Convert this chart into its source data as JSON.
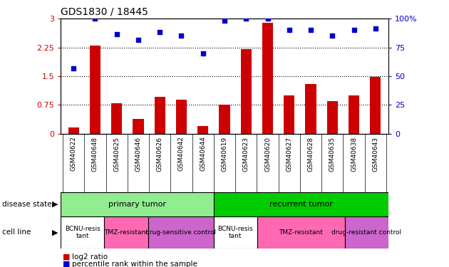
{
  "title": "GDS1830 / 18445",
  "samples": [
    "GSM40622",
    "GSM40648",
    "GSM40625",
    "GSM40646",
    "GSM40626",
    "GSM40642",
    "GSM40644",
    "GSM40619",
    "GSM40623",
    "GSM40620",
    "GSM40627",
    "GSM40628",
    "GSM40635",
    "GSM40638",
    "GSM40643"
  ],
  "log2_ratio": [
    0.15,
    2.3,
    0.8,
    0.38,
    0.95,
    0.88,
    0.2,
    0.75,
    2.2,
    2.9,
    1.0,
    1.3,
    0.85,
    1.0,
    1.47
  ],
  "pct_rank": [
    1.7,
    3.0,
    2.6,
    2.45,
    2.65,
    2.55,
    2.1,
    2.95,
    3.0,
    3.0,
    2.7,
    2.7,
    2.55,
    2.7,
    2.75
  ],
  "bar_color": "#cc0000",
  "dot_color": "#0000cc",
  "ylim_left": [
    0,
    3
  ],
  "ylim_right": [
    0,
    100
  ],
  "yticks_left": [
    0,
    0.75,
    1.5,
    2.25,
    3.0
  ],
  "yticks_right": [
    0,
    25,
    50,
    75,
    100
  ],
  "ytick_labels_left": [
    "0",
    "0.75",
    "1.5",
    "2.25",
    "3"
  ],
  "ytick_labels_right": [
    "0",
    "25",
    "50",
    "75",
    "100%"
  ],
  "disease_state_groups": [
    {
      "label": "primary tumor",
      "start": 0,
      "end": 7,
      "color": "#90ee90"
    },
    {
      "label": "recurrent tumor",
      "start": 7,
      "end": 15,
      "color": "#00cc00"
    }
  ],
  "cell_line_groups": [
    {
      "label": "BCNU-resis\ntant",
      "start": 0,
      "end": 2,
      "color": "#ffffff"
    },
    {
      "label": "TMZ-resistant",
      "start": 2,
      "end": 4,
      "color": "#ff69b4"
    },
    {
      "label": "drug-sensitive control",
      "start": 4,
      "end": 7,
      "color": "#cc66cc"
    },
    {
      "label": "BCNU-resis\ntant",
      "start": 7,
      "end": 9,
      "color": "#ffffff"
    },
    {
      "label": "TMZ-resistant",
      "start": 9,
      "end": 13,
      "color": "#ff69b4"
    },
    {
      "label": "drug-resistant control",
      "start": 13,
      "end": 15,
      "color": "#cc66cc"
    }
  ],
  "left_label_color": "#cc0000",
  "right_label_color": "#0000cc",
  "bg_color": "#ffffff",
  "bar_width": 0.5,
  "xtick_bg": "#cccccc"
}
